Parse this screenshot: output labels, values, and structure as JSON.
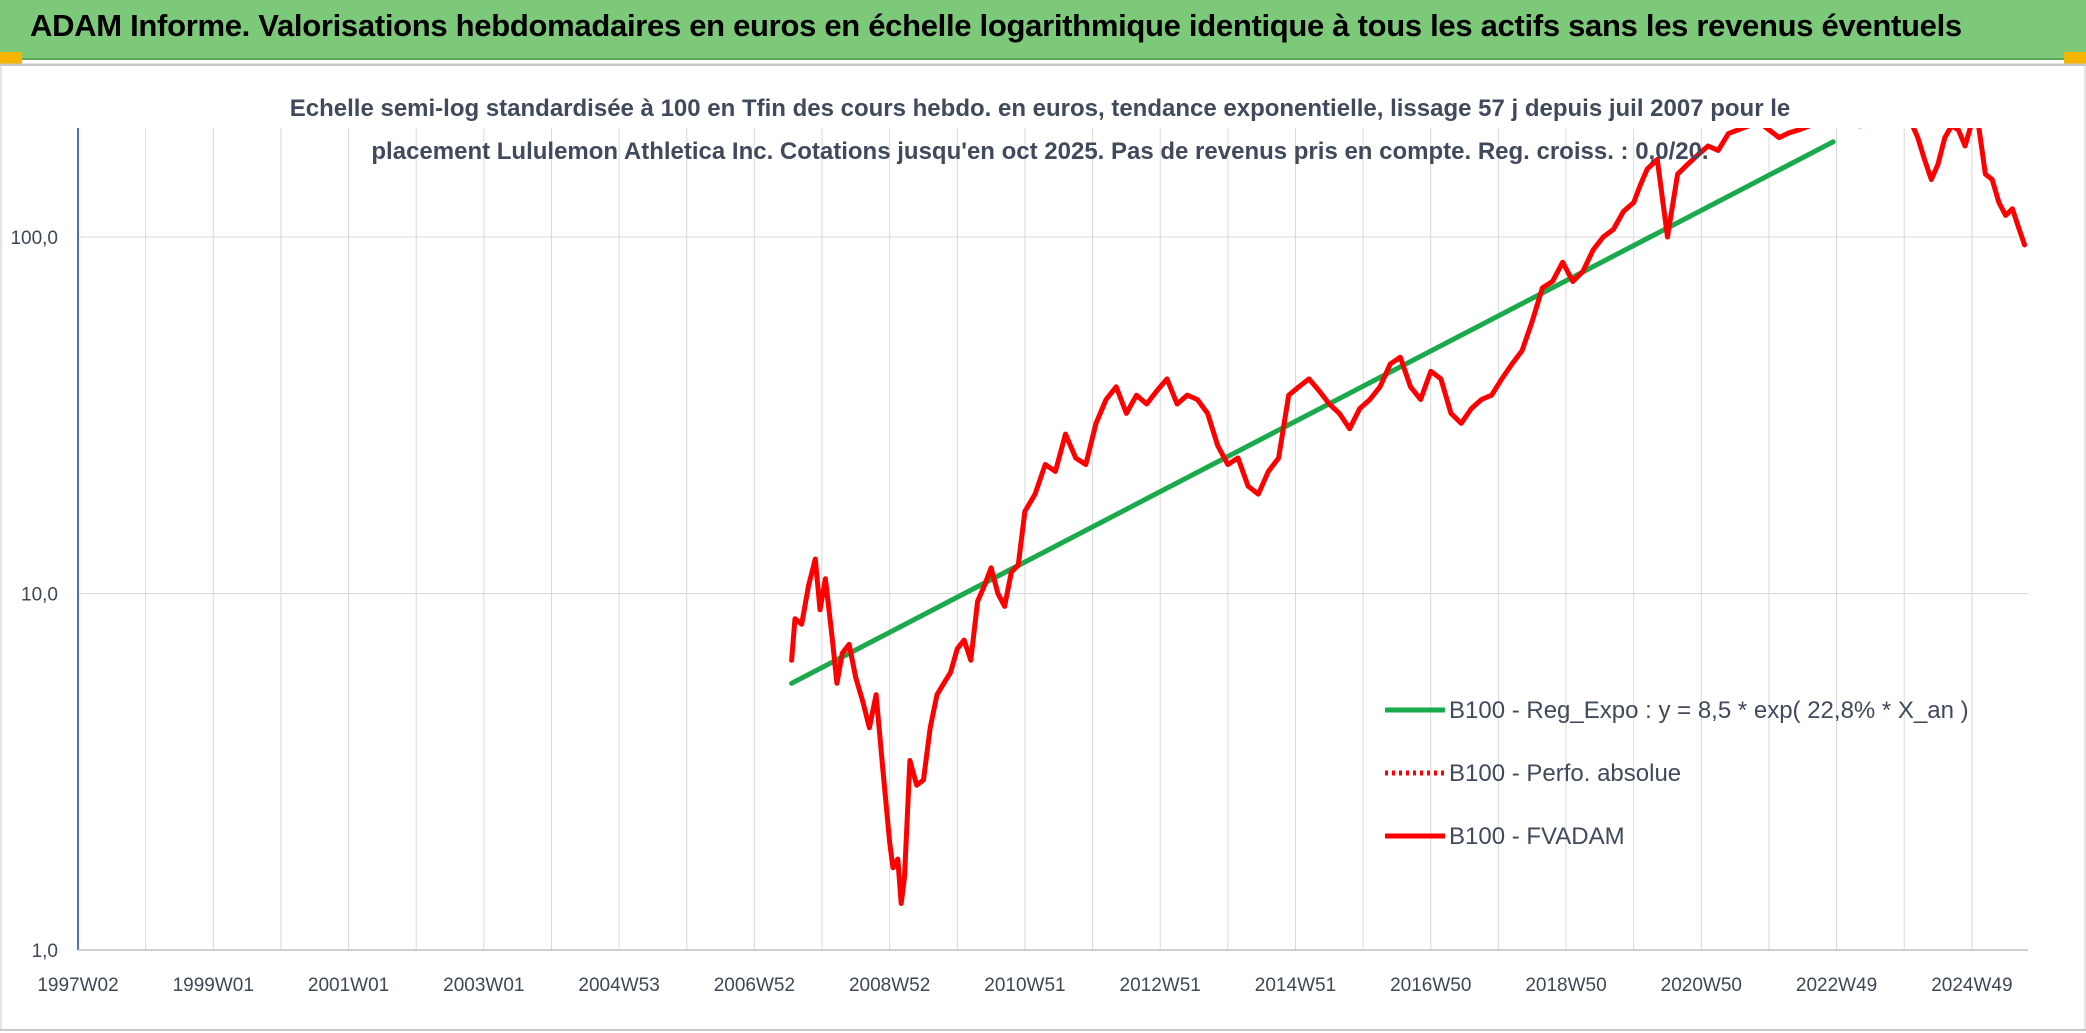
{
  "header": {
    "title": "ADAM Informe. Valorisations hebdomadaires en euros en échelle logarithmique identique à tous les actifs sans les revenus éventuels"
  },
  "chart_data": {
    "type": "line",
    "title_lines": [
      "Echelle semi-log standardisée à 100 en Tfin des cours hebdo. en euros, tendance exponentielle, lissage 57 j depuis juil 2007 pour le",
      "placement Lululemon Athletica Inc. Cotations jusqu'en oct 2025. Pas de revenus pris en compte. Reg. croiss. : 0,0/20."
    ],
    "xlabel": "",
    "ylabel": "",
    "y_scale": "log",
    "ylim": [
      1,
      200
    ],
    "xlim": [
      1997.0,
      2025.83
    ],
    "y_ticks": [
      1,
      10,
      100
    ],
    "y_tick_labels": [
      "1,0",
      "10,0",
      "100,0"
    ],
    "x_tick_labels": [
      "1997W02",
      "1999W01",
      "2001W01",
      "2003W01",
      "2004W53",
      "2006W52",
      "2008W52",
      "2010W51",
      "2012W51",
      "2014W51",
      "2016W50",
      "2018W50",
      "2020W50",
      "2022W49",
      "2024W49"
    ],
    "x_gridlines": [
      1997.0,
      1998.0,
      1999.0,
      2000.0,
      2001.0,
      2002.0,
      2003.0,
      2004.0,
      2005.0,
      2006.0,
      2007.0,
      2008.0,
      2009.0,
      2010.0,
      2011.0,
      2012.0,
      2013.0,
      2014.0,
      2015.0,
      2016.0,
      2017.0,
      2018.0,
      2019.0,
      2020.0,
      2021.0,
      2022.0,
      2023.0,
      2024.0,
      2025.0
    ],
    "grid": true,
    "legend_position": "right",
    "colors": {
      "trend": "#1aaa4b",
      "price": "#ff0000",
      "axis": "#4a72b8",
      "grid": "#d9d9d9"
    },
    "series": [
      {
        "name": "B100 - Reg_Expo : y = 8,5 * exp( 22,8% *  X_an )",
        "style": "solid",
        "color": "#1aaa4b",
        "x": [
          2007.55,
          2022.95
        ],
        "y": [
          5.6,
          185
        ]
      },
      {
        "name": "B100 - Perfo. absolue",
        "style": "dotted",
        "color": "#ff0000",
        "x": [],
        "y": []
      },
      {
        "name": "B100 - FVADAM",
        "style": "solid",
        "color": "#ff0000",
        "x": [
          2007.55,
          2007.6,
          2007.7,
          2007.8,
          2007.9,
          2007.97,
          2008.05,
          2008.15,
          2008.22,
          2008.3,
          2008.4,
          2008.5,
          2008.6,
          2008.7,
          2008.8,
          2008.9,
          2009.0,
          2009.05,
          2009.12,
          2009.17,
          2009.22,
          2009.3,
          2009.4,
          2009.5,
          2009.6,
          2009.7,
          2009.8,
          2009.9,
          2010.0,
          2010.1,
          2010.2,
          2010.3,
          2010.4,
          2010.5,
          2010.6,
          2010.7,
          2010.8,
          2010.9,
          2011.0,
          2011.15,
          2011.3,
          2011.45,
          2011.6,
          2011.75,
          2011.9,
          2012.05,
          2012.2,
          2012.35,
          2012.5,
          2012.65,
          2012.8,
          2012.95,
          2013.1,
          2013.25,
          2013.4,
          2013.55,
          2013.7,
          2013.85,
          2014.0,
          2014.15,
          2014.3,
          2014.45,
          2014.6,
          2014.75,
          2014.9,
          2015.05,
          2015.2,
          2015.35,
          2015.5,
          2015.65,
          2015.8,
          2015.95,
          2016.1,
          2016.25,
          2016.4,
          2016.55,
          2016.7,
          2016.85,
          2017.0,
          2017.15,
          2017.3,
          2017.45,
          2017.6,
          2017.75,
          2017.9,
          2018.05,
          2018.2,
          2018.35,
          2018.5,
          2018.65,
          2018.8,
          2018.95,
          2019.1,
          2019.25,
          2019.4,
          2019.55,
          2019.7,
          2019.85,
          2020.0,
          2020.1,
          2020.2,
          2020.35,
          2020.5,
          2020.65,
          2020.8,
          2020.95,
          2021.1,
          2021.25,
          2021.4,
          2021.55,
          2021.7,
          2021.85,
          2022.0,
          2022.15,
          2022.3,
          2022.45,
          2022.6,
          2022.75,
          2022.9,
          2023.05,
          2023.2,
          2023.35,
          2023.5,
          2023.65,
          2023.8,
          2023.95,
          2024.1,
          2024.2,
          2024.3,
          2024.4,
          2024.5,
          2024.6,
          2024.7,
          2024.8,
          2024.9,
          2025.0,
          2025.1,
          2025.2,
          2025.3,
          2025.4,
          2025.5,
          2025.6,
          2025.7,
          2025.78
        ],
        "y": [
          6.5,
          8.5,
          8.2,
          10.5,
          12.5,
          9.0,
          11.0,
          7.5,
          5.6,
          6.8,
          7.2,
          5.8,
          5.0,
          4.2,
          5.2,
          3.2,
          2.0,
          1.7,
          1.8,
          1.35,
          1.6,
          3.4,
          2.9,
          3.0,
          4.2,
          5.2,
          5.6,
          6.0,
          7.0,
          7.4,
          6.5,
          9.5,
          10.5,
          11.8,
          10.0,
          9.2,
          11.5,
          12.0,
          17.0,
          19.0,
          23.0,
          22.0,
          28.0,
          24.0,
          23.0,
          30.0,
          35.0,
          38.0,
          32.0,
          36.0,
          34.0,
          37.0,
          40.0,
          34.0,
          36.0,
          35.0,
          32.0,
          26.0,
          23.0,
          24.0,
          20.0,
          19.0,
          22.0,
          24.0,
          36.0,
          38.0,
          40.0,
          37.0,
          34.0,
          32.0,
          29.0,
          33.0,
          35.0,
          38.0,
          44.0,
          46.0,
          38.0,
          35.0,
          42.0,
          40.0,
          32.0,
          30.0,
          33.0,
          35.0,
          36.0,
          40.0,
          44.0,
          48.0,
          58.0,
          72.0,
          75.0,
          85.0,
          75.0,
          80.0,
          92.0,
          100.0,
          105.0,
          118.0,
          125.0,
          140.0,
          155.0,
          165.0,
          100.0,
          150.0,
          160.0,
          170.0,
          180.0,
          175.0,
          195.0,
          200.0,
          205.0,
          210.0,
          200.0,
          190.0,
          196.0,
          200.0,
          205.0,
          210.0,
          215.0,
          220.0,
          210.0,
          205.0,
          215.0,
          220.0,
          230.0,
          240.0,
          210.0,
          190.0,
          165.0,
          145.0,
          160.0,
          190.0,
          205.0,
          200.0,
          180.0,
          210.0,
          205.0,
          150.0,
          145.0,
          125.0,
          115.0,
          120.0,
          105.0,
          95.0
        ]
      }
    ]
  }
}
